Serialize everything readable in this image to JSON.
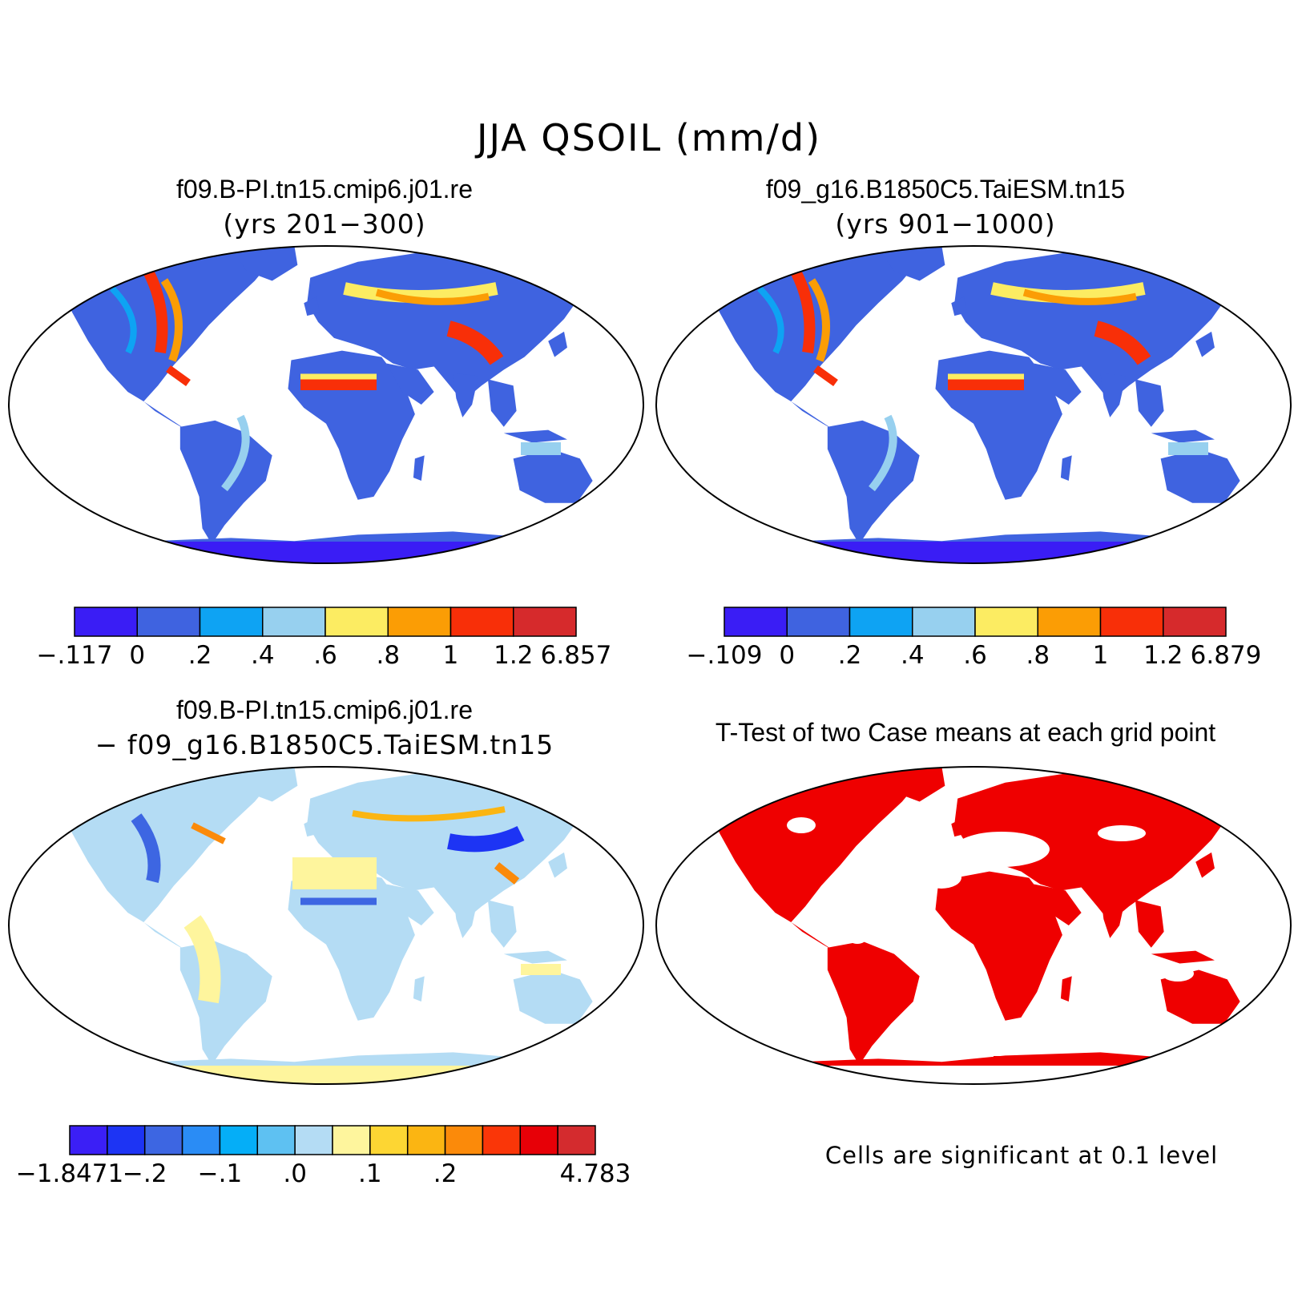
{
  "title": "JJA QSOIL (mm/d)",
  "panels": [
    {
      "id": "case1",
      "title": "f09.B-PI.tn15.cmip6.j01.re",
      "subtitle": "(yrs 201−300)"
    },
    {
      "id": "case2",
      "title": "f09_g16.B1850C5.TaiESM.tn15",
      "subtitle": "(yrs 901−1000)"
    },
    {
      "id": "diff",
      "title": "f09.B-PI.tn15.cmip6.j01.re",
      "subtitle": "−  f09_g16.B1850C5.TaiESM.tn15"
    },
    {
      "id": "ttest",
      "title": "T-Test of two Case means at each grid point",
      "subtitle": ""
    }
  ],
  "colorbars": [
    {
      "id": "cb1",
      "colors": [
        "#3a1df5",
        "#3f63e0",
        "#0ea3f3",
        "#97d0ef",
        "#fcec62",
        "#fb9d05",
        "#f82f08",
        "#d62a2c"
      ],
      "labels": [
        "−.117",
        "0",
        ".2",
        ".4",
        ".6",
        ".8",
        "1",
        "1.2",
        "6.857"
      ]
    },
    {
      "id": "cb2",
      "colors": [
        "#3a1df5",
        "#3f63e0",
        "#0ea3f3",
        "#97d0ef",
        "#fcec62",
        "#fb9d05",
        "#f82f08",
        "#d62a2c"
      ],
      "labels": [
        "−.109",
        "0",
        ".2",
        ".4",
        ".6",
        ".8",
        "1",
        "1.2",
        "6.879"
      ]
    },
    {
      "id": "cb3",
      "colors": [
        "#3b1ff6",
        "#1d34f4",
        "#3d66e2",
        "#2a8cf5",
        "#05aef7",
        "#5ec1f2",
        "#b4dcf4",
        "#fef59d",
        "#fdd633",
        "#fbb512",
        "#fb8a0a",
        "#fa3608",
        "#e70007",
        "#d42b2e"
      ],
      "labels": [
        "−1.8471",
        "−.2",
        "−.1",
        ".0",
        ".1",
        ".2",
        "4.783"
      ]
    }
  ],
  "significance_note": "Cells are significant at 0.1 level",
  "colors": {
    "land_significant": "#ef0000",
    "frame": "#000000"
  }
}
